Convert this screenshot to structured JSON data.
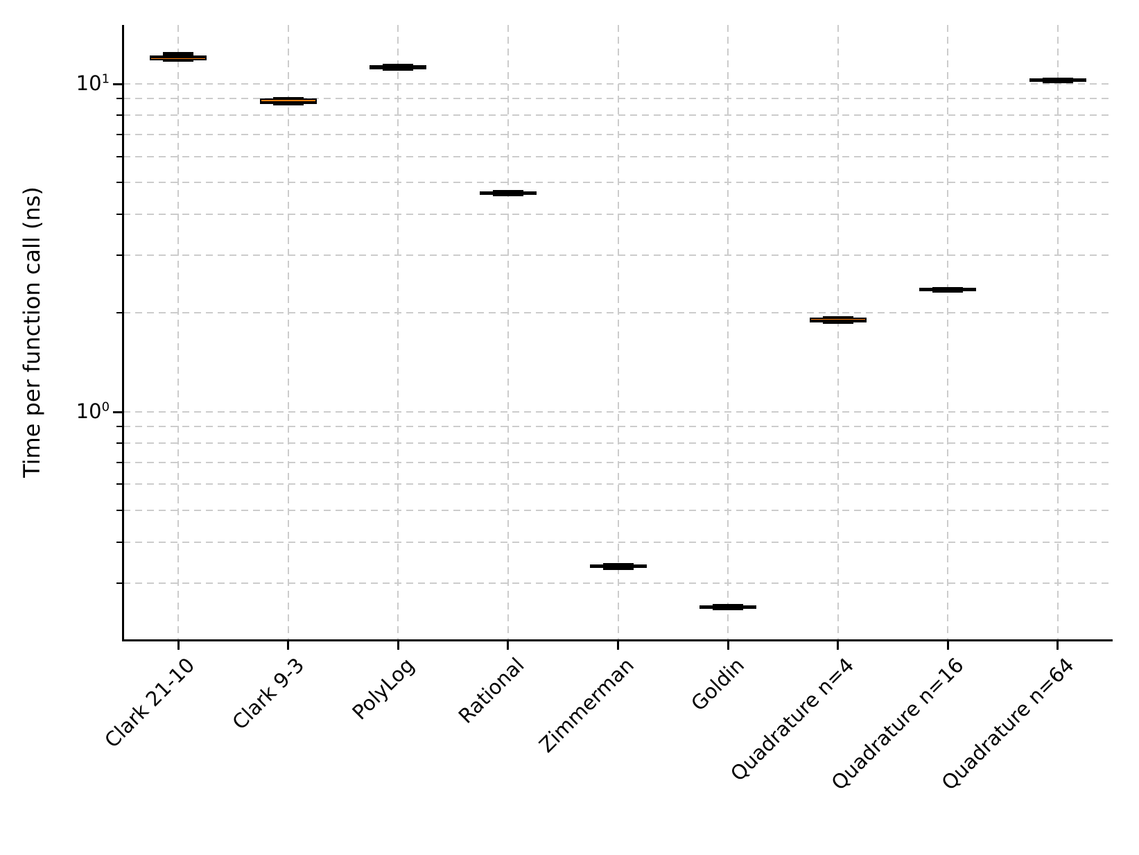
{
  "figure": {
    "background": "#ffffff"
  },
  "chart_data": {
    "type": "box",
    "orientation": "vertical",
    "title": "",
    "xlabel": "",
    "ylabel": "Time per function call (ns)",
    "yscale": "log",
    "ylim": [
      0.202,
      15.1
    ],
    "grid": "dashed, light gray, horizontal at log decades and minor values, vertical at each category",
    "legend": "none",
    "categories": [
      "Clark 21-10",
      "Clark 9-3",
      "PolyLog",
      "Rational",
      "Zimmerman",
      "Goldin",
      "Quadrature n=4",
      "Quadrature n=16",
      "Quadrature n=64"
    ],
    "yticks_major": [
      {
        "base": "10",
        "exponent": "1",
        "value": 10
      },
      {
        "base": "10",
        "exponent": "0",
        "value": 1
      }
    ],
    "yticks_minor": [
      0.3,
      0.4,
      0.5,
      0.6,
      0.7,
      0.8,
      0.9,
      2,
      3,
      4,
      5,
      6,
      7,
      8,
      9
    ],
    "grid_values_horizontal": [
      0.3,
      0.4,
      0.5,
      0.6,
      0.7,
      0.8,
      0.9,
      1,
      2,
      3,
      4,
      5,
      6,
      7,
      8,
      9,
      10
    ],
    "series": [
      {
        "label": "Clark 21-10",
        "median": 12.0,
        "q1": 11.8,
        "q3": 12.2,
        "whisker_low": 11.65,
        "whisker_high": 12.5
      },
      {
        "label": "Clark 9-3",
        "median": 8.8,
        "q1": 8.68,
        "q3": 9.0,
        "whisker_low": 8.58,
        "whisker_high": 9.1
      },
      {
        "label": "PolyLog",
        "median": 11.2,
        "q1": 11.05,
        "q3": 11.4,
        "whisker_low": 10.95,
        "whisker_high": 11.5
      },
      {
        "label": "Rational",
        "median": 4.63,
        "q1": 4.58,
        "q3": 4.69,
        "whisker_low": 4.54,
        "whisker_high": 4.73
      },
      {
        "label": "Zimmerman",
        "median": 0.337,
        "q1": 0.333,
        "q3": 0.341,
        "whisker_low": 0.329,
        "whisker_high": 0.345
      },
      {
        "label": "Goldin",
        "median": 0.253,
        "q1": 0.25,
        "q3": 0.256,
        "whisker_low": 0.248,
        "whisker_high": 0.259
      },
      {
        "label": "Quadrature n=4",
        "median": 1.9,
        "q1": 1.87,
        "q3": 1.93,
        "whisker_low": 1.85,
        "whisker_high": 1.95
      },
      {
        "label": "Quadrature n=16",
        "median": 2.35,
        "q1": 2.33,
        "q3": 2.38,
        "whisker_low": 2.31,
        "whisker_high": 2.4
      },
      {
        "label": "Quadrature n=64",
        "median": 10.25,
        "q1": 10.12,
        "q3": 10.36,
        "whisker_low": 10.05,
        "whisker_high": 10.42
      }
    ],
    "colors": {
      "box_fill": "#ff7f0e",
      "box_edge": "#000000",
      "median_line": "#000000",
      "whisker_caps": "#000000",
      "grid": "#cccccc",
      "spine": "#000000",
      "text": "#000000"
    }
  }
}
